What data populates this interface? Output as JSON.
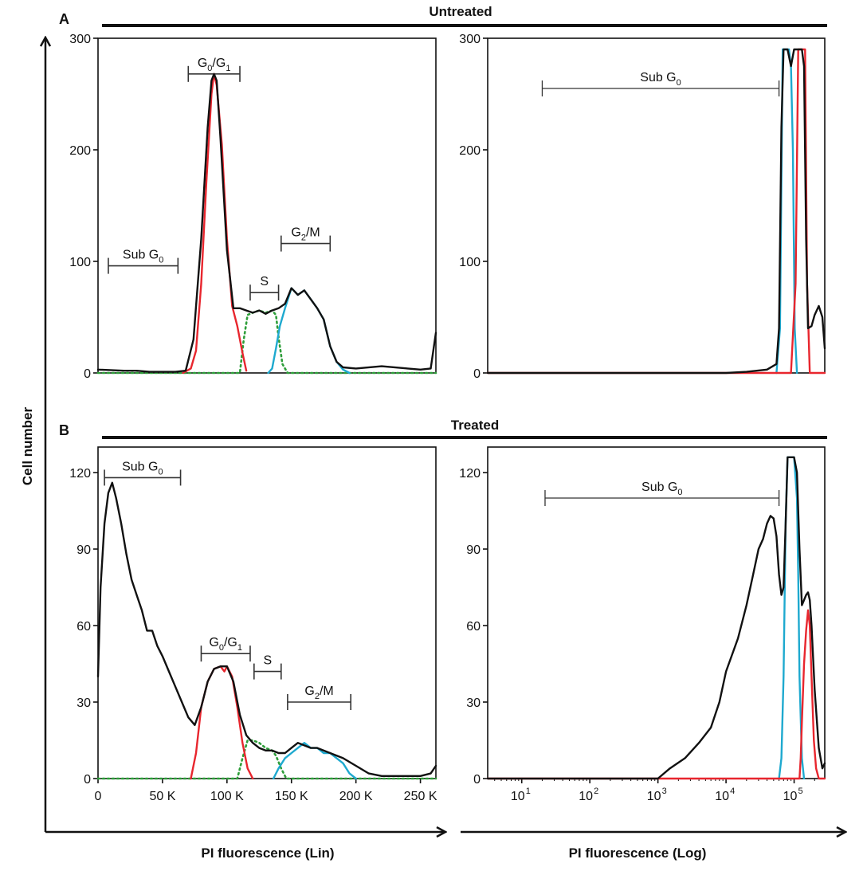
{
  "figure": {
    "y_axis_label": "Cell number",
    "x_axis_lin_label": "PI fluorescence (Lin)",
    "x_axis_log_label": "PI fluorescence (Log)"
  },
  "rows": [
    {
      "letter": "A",
      "title": "Untreated"
    },
    {
      "letter": "B",
      "title": "Treated"
    }
  ],
  "colors": {
    "total": "#111111",
    "g0g1": "#e8262e",
    "s": "#2e9e3a",
    "g2m": "#1ea9cf"
  },
  "chart_data": [
    {
      "type": "line",
      "id": "A_lin",
      "title": "Untreated",
      "scale": "linear",
      "xlim": [
        0,
        262000
      ],
      "ylim": [
        0,
        300
      ],
      "yticks": [
        "0",
        "100",
        "200",
        "300"
      ],
      "xticks": [],
      "gates": [
        {
          "label": "Sub G0",
          "text": "Sub G",
          "sub": "0",
          "x1": 8000,
          "x2": 62000,
          "y": 96
        },
        {
          "label": "G0/G1",
          "text": "G",
          "sub": "0",
          "mid": "/G",
          "sub2": "1",
          "x1": 70000,
          "x2": 110000,
          "y": 268
        },
        {
          "label": "S",
          "text": "S",
          "x1": 118000,
          "x2": 140000,
          "y": 72
        },
        {
          "label": "G2/M",
          "text": "G",
          "sub": "2",
          "mid": "/M",
          "x1": 142000,
          "x2": 180000,
          "y": 116
        }
      ],
      "series": [
        {
          "name": "Total",
          "color_key": "total",
          "dash": false,
          "x": [
            0,
            20000,
            30000,
            40000,
            60000,
            68000,
            74000,
            80000,
            85000,
            88000,
            90000,
            92000,
            95000,
            100000,
            105000,
            110000,
            115000,
            120000,
            125000,
            130000,
            135000,
            140000,
            145000,
            150000,
            155000,
            160000,
            165000,
            170000,
            175000,
            180000,
            185000,
            190000,
            200000,
            220000,
            240000,
            250000,
            258000,
            262000
          ],
          "y": [
            3,
            2,
            2,
            1,
            1,
            2,
            30,
            120,
            220,
            262,
            268,
            262,
            210,
            110,
            58,
            58,
            56,
            54,
            56,
            53,
            56,
            58,
            62,
            76,
            70,
            74,
            66,
            58,
            48,
            24,
            10,
            5,
            4,
            6,
            4,
            3,
            4,
            36
          ]
        },
        {
          "name": "G0/G1",
          "color_key": "g0g1",
          "dash": false,
          "x": [
            66000,
            72000,
            76000,
            80000,
            84000,
            88000,
            90000,
            92000,
            96000,
            100000,
            104000,
            108000,
            112000,
            115000
          ],
          "y": [
            0,
            4,
            20,
            80,
            170,
            250,
            268,
            258,
            205,
            120,
            60,
            42,
            18,
            2
          ]
        },
        {
          "name": "S",
          "color_key": "s",
          "dash": true,
          "x": [
            0,
            110000,
            113000,
            116000,
            120000,
            125000,
            130000,
            135000,
            138000,
            140000,
            143000,
            147000,
            262000
          ],
          "y": [
            0,
            0,
            30,
            52,
            54,
            56,
            54,
            56,
            52,
            32,
            8,
            0,
            0
          ]
        },
        {
          "name": "G2/M",
          "color_key": "g2m",
          "dash": false,
          "x": [
            132000,
            135000,
            138000,
            141000,
            145000,
            150000,
            155000,
            160000,
            165000,
            170000,
            175000,
            180000,
            185000,
            190000,
            195000
          ],
          "y": [
            0,
            4,
            22,
            42,
            58,
            76,
            70,
            74,
            66,
            58,
            48,
            24,
            10,
            3,
            0
          ]
        }
      ]
    },
    {
      "type": "line",
      "id": "A_log",
      "title": "Untreated",
      "scale": "log",
      "xlim_log10": [
        0.5,
        5.45
      ],
      "ylim": [
        0,
        300
      ],
      "yticks": [
        "0",
        "100",
        "200",
        "300"
      ],
      "xticks": [],
      "gates": [
        {
          "label": "Sub G0",
          "text": "Sub G",
          "sub": "0",
          "x1": 20,
          "x2": 60000,
          "y": 255
        }
      ],
      "series": [
        {
          "name": "Total",
          "color_key": "total",
          "dash": false,
          "x": [
            3.16,
            1000,
            10000,
            20000,
            40000,
            55000,
            60000,
            65000,
            70000,
            75000,
            80000,
            90000,
            100000,
            110000,
            120000,
            130000,
            140000,
            150000,
            160000,
            180000,
            200000,
            230000,
            260000,
            282000
          ],
          "y": [
            0,
            0,
            0,
            1,
            3,
            8,
            40,
            220,
            290,
            290,
            290,
            275,
            290,
            290,
            290,
            290,
            275,
            120,
            40,
            42,
            52,
            60,
            50,
            22
          ]
        },
        {
          "name": "G0/G1",
          "color_key": "g0g1",
          "dash": false,
          "x": [
            3.16,
            90000,
            105000,
            115000,
            125000,
            135000,
            145000,
            155000,
            170000,
            282000
          ],
          "y": [
            0,
            0,
            80,
            290,
            290,
            290,
            290,
            80,
            0,
            0
          ]
        },
        {
          "name": "G2/M",
          "color_key": "g2m",
          "dash": false,
          "x": [
            55000,
            62000,
            68000,
            72000,
            78000,
            84000,
            90000,
            96000,
            102000,
            110000
          ],
          "y": [
            0,
            40,
            290,
            290,
            290,
            290,
            275,
            200,
            40,
            0
          ]
        }
      ]
    },
    {
      "type": "line",
      "id": "B_lin",
      "title": "Treated",
      "scale": "linear",
      "xlim": [
        0,
        262000
      ],
      "ylim": [
        0,
        130
      ],
      "yticks": [
        "0",
        "30",
        "60",
        "90",
        "120"
      ],
      "xticks": [
        "0",
        "50 K",
        "100 K",
        "150 K",
        "200 K",
        "250 K"
      ],
      "xtick_values": [
        0,
        50000,
        100000,
        150000,
        200000,
        250000
      ],
      "gates": [
        {
          "label": "Sub G0",
          "text": "Sub G",
          "sub": "0",
          "x1": 5000,
          "x2": 64000,
          "y": 118
        },
        {
          "label": "G0/G1",
          "text": "G",
          "sub": "0",
          "mid": "/G",
          "sub2": "1",
          "x1": 80000,
          "x2": 118000,
          "y": 49
        },
        {
          "label": "S",
          "text": "S",
          "x1": 121000,
          "x2": 142000,
          "y": 42
        },
        {
          "label": "G2/M",
          "text": "G",
          "sub": "2",
          "mid": "/M",
          "x1": 147000,
          "x2": 196000,
          "y": 30
        }
      ],
      "series": [
        {
          "name": "Total",
          "color_key": "total",
          "dash": false,
          "x": [
            0,
            2000,
            5000,
            8000,
            11000,
            14000,
            18000,
            22000,
            26000,
            30000,
            34000,
            38000,
            42000,
            46000,
            50000,
            55000,
            60000,
            65000,
            70000,
            75000,
            80000,
            85000,
            90000,
            95000,
            100000,
            105000,
            110000,
            115000,
            120000,
            125000,
            130000,
            135000,
            140000,
            145000,
            150000,
            155000,
            160000,
            165000,
            170000,
            180000,
            190000,
            200000,
            210000,
            220000,
            230000,
            240000,
            250000,
            258000,
            262000
          ],
          "y": [
            40,
            75,
            100,
            112,
            116,
            110,
            100,
            88,
            78,
            72,
            66,
            58,
            58,
            52,
            48,
            42,
            36,
            30,
            24,
            21,
            28,
            38,
            43,
            44,
            44,
            38,
            25,
            17,
            14,
            12,
            11,
            11,
            10,
            10,
            12,
            14,
            13,
            12,
            12,
            10,
            8,
            5,
            2,
            1,
            1,
            1,
            1,
            2,
            5
          ]
        },
        {
          "name": "G0/G1",
          "color_key": "g0g1",
          "dash": false,
          "x": [
            72000,
            76000,
            80000,
            85000,
            90000,
            95000,
            98000,
            100000,
            104000,
            108000,
            112000,
            116000,
            120000
          ],
          "y": [
            0,
            10,
            28,
            38,
            43,
            44,
            42,
            44,
            40,
            28,
            14,
            4,
            0
          ]
        },
        {
          "name": "S",
          "color_key": "s",
          "dash": true,
          "x": [
            0,
            108000,
            112000,
            116000,
            120000,
            125000,
            130000,
            135000,
            138000,
            142000,
            146000,
            262000
          ],
          "y": [
            0,
            0,
            8,
            15,
            15,
            14,
            12,
            11,
            9,
            4,
            0,
            0
          ]
        },
        {
          "name": "G2/M",
          "color_key": "g2m",
          "dash": false,
          "x": [
            136000,
            140000,
            145000,
            150000,
            155000,
            160000,
            165000,
            170000,
            175000,
            180000,
            185000,
            190000,
            195000,
            200000
          ],
          "y": [
            0,
            4,
            8,
            10,
            12,
            14,
            12,
            12,
            10,
            10,
            8,
            6,
            2,
            0
          ]
        }
      ]
    },
    {
      "type": "line",
      "id": "B_log",
      "title": "Treated",
      "scale": "log",
      "xlim_log10": [
        0.5,
        5.45
      ],
      "ylim": [
        0,
        130
      ],
      "yticks": [
        "0",
        "30",
        "60",
        "90",
        "120"
      ],
      "xticks": [
        "10",
        "10",
        "10",
        "10",
        "10"
      ],
      "xtick_exponents": [
        "1",
        "2",
        "3",
        "4",
        "5"
      ],
      "xtick_values": [
        10,
        100,
        1000,
        10000,
        100000
      ],
      "gates": [
        {
          "label": "Sub G0",
          "text": "Sub G",
          "sub": "0",
          "x1": 22,
          "x2": 60000,
          "y": 110
        }
      ],
      "series": [
        {
          "name": "Total",
          "color_key": "total",
          "dash": false,
          "x": [
            3.16,
            1000,
            1500,
            2500,
            4000,
            6000,
            8000,
            10000,
            15000,
            20000,
            25000,
            30000,
            35000,
            40000,
            45000,
            50000,
            55000,
            60000,
            65000,
            70000,
            75000,
            80000,
            90000,
            100000,
            110000,
            120000,
            130000,
            140000,
            150000,
            160000,
            170000,
            180000,
            200000,
            230000,
            260000,
            282000
          ],
          "y": [
            0,
            0,
            4,
            8,
            14,
            20,
            30,
            42,
            55,
            68,
            80,
            90,
            94,
            100,
            103,
            102,
            95,
            80,
            72,
            75,
            100,
            126,
            126,
            126,
            120,
            90,
            68,
            70,
            72,
            73,
            70,
            60,
            35,
            12,
            4,
            6
          ]
        },
        {
          "name": "G0/G1",
          "color_key": "g0g1",
          "dash": false,
          "x": [
            3.16,
            120000,
            125000,
            130000,
            140000,
            150000,
            160000,
            170000,
            180000,
            195000,
            210000,
            230000,
            282000
          ],
          "y": [
            0,
            0,
            8,
            22,
            45,
            58,
            66,
            60,
            40,
            15,
            4,
            0,
            0
          ]
        },
        {
          "name": "G2/M",
          "color_key": "g2m",
          "dash": false,
          "x": [
            60000,
            65000,
            70000,
            75000,
            80000,
            90000,
            100000,
            110000,
            115000,
            120000,
            130000,
            140000
          ],
          "y": [
            0,
            8,
            40,
            100,
            126,
            126,
            126,
            110,
            80,
            40,
            8,
            0
          ]
        }
      ]
    }
  ]
}
